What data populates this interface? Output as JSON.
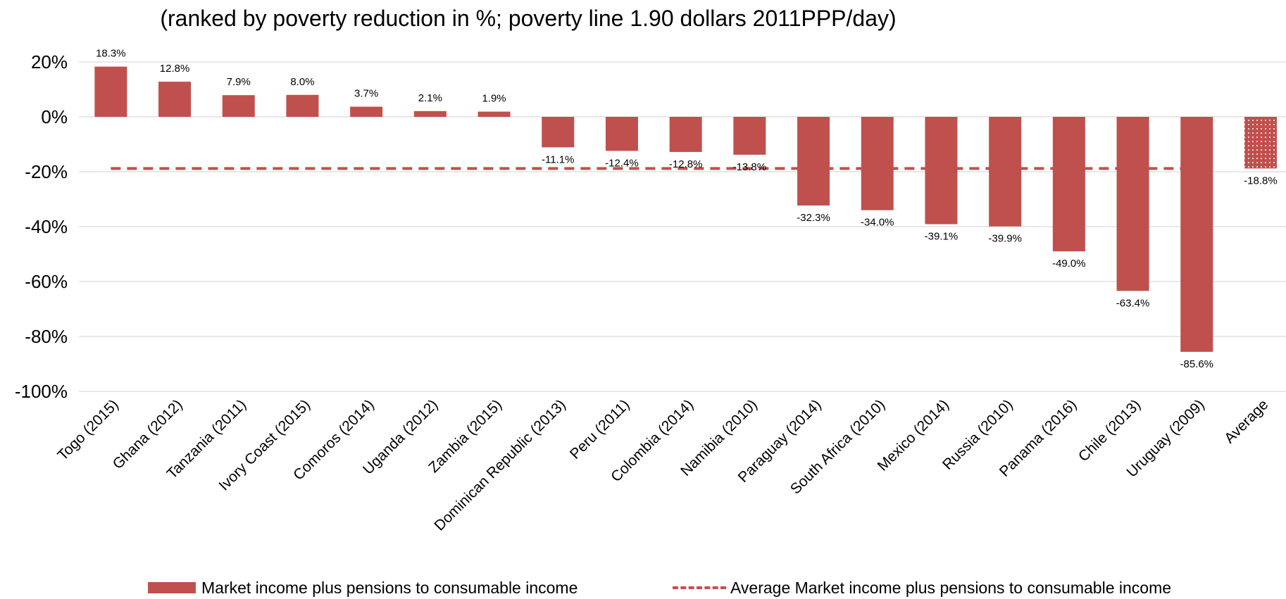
{
  "chart_data": {
    "type": "bar",
    "title": "(ranked by poverty reduction in %; poverty line 1.90 dollars 2011PPP/day)",
    "categories": [
      "Togo (2015)",
      "Ghana (2012)",
      "Tanzania (2011)",
      "Ivory Coast (2015)",
      "Comoros (2014)",
      "Uganda (2012)",
      "Zambia (2015)",
      "Dominican Republic (2013)",
      "Peru (2011)",
      "Colombia (2014)",
      "Namibia (2010)",
      "Paraguay (2014)",
      "South Africa (2010)",
      "Mexico (2014)",
      "Russia (2010)",
      "Panama (2016)",
      "Chile (2013)",
      "Uruguay (2009)",
      "Average"
    ],
    "series": [
      {
        "name": "Market income plus pensions to consumable income",
        "type": "bar",
        "values": [
          18.3,
          12.8,
          7.9,
          8.0,
          3.7,
          2.1,
          1.9,
          -11.1,
          -12.4,
          -12.8,
          -13.8,
          -32.3,
          -34.0,
          -39.1,
          -39.9,
          -49.0,
          -63.4,
          -85.6,
          -18.8
        ],
        "data_labels": [
          "18.3%",
          "12.8%",
          "7.9%",
          "8.0%",
          "3.7%",
          "2.1%",
          "1.9%",
          "-11.1%",
          "-12.4%",
          "-12.8%",
          "-13.8%",
          "-32.3%",
          "-34.0%",
          "-39.1%",
          "-39.9%",
          "-49.0%",
          "-63.4%",
          "-85.6%",
          "-18.8%"
        ],
        "color": "#c0504d",
        "last_bar_pattern": "dotted"
      },
      {
        "name": "Average Market income plus pensions to consumable income",
        "type": "line",
        "style": "dashed",
        "value": -18.8,
        "color": "#c0504d"
      }
    ],
    "ylim": [
      -100,
      20
    ],
    "yticks": [
      20,
      0,
      -20,
      -40,
      -60,
      -80,
      -100
    ],
    "ytick_labels": [
      "20%",
      "0%",
      "-20%",
      "-40%",
      "-60%",
      "-80%",
      "-100%"
    ],
    "xlabel": "",
    "ylabel": "",
    "grid": true,
    "gridline_color": "#d9d9d9",
    "legend_position": "bottom"
  }
}
